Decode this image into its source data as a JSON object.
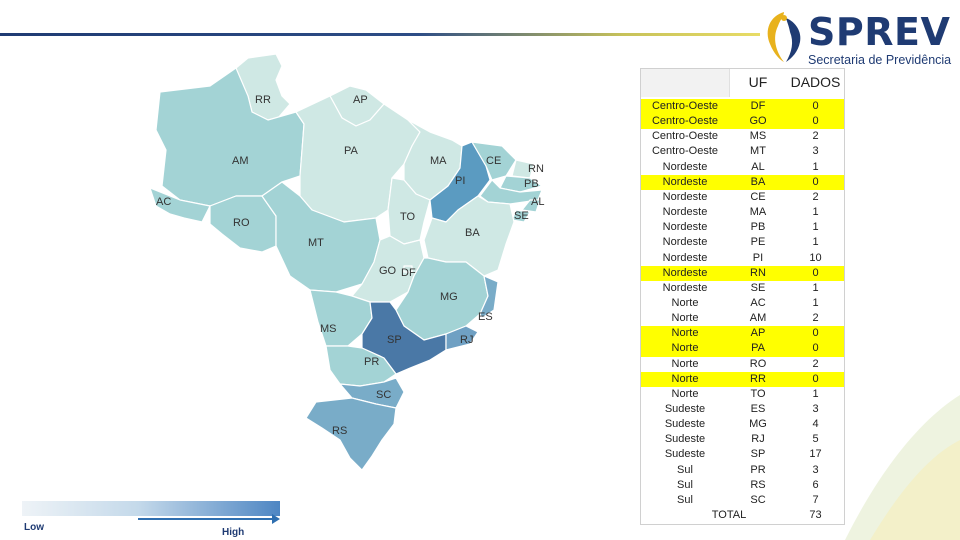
{
  "header": {
    "logo": {
      "title": "SPREV",
      "subtitle": "Secretaria de Previdência"
    }
  },
  "colors": {
    "brand": "#1f3b73",
    "highlight": "#ffff00",
    "accent_yellow": "#e8dc66"
  },
  "map": {
    "state_labels": [
      "RR",
      "AP",
      "AM",
      "PA",
      "MA",
      "CE",
      "RN",
      "PB",
      "PI",
      "AC",
      "RO",
      "TO",
      "AL",
      "SE",
      "MT",
      "BA",
      "GO",
      "DF",
      "MG",
      "ES",
      "MS",
      "SP",
      "RJ",
      "PR",
      "SC",
      "RS"
    ]
  },
  "legend": {
    "low": "Low",
    "high": "High"
  },
  "table": {
    "headers": {
      "uf": "UF",
      "dados": "DADOS"
    },
    "rows": [
      {
        "region": "Centro-Oeste",
        "uf": "DF",
        "value": "0",
        "highlight": true
      },
      {
        "region": "Centro-Oeste",
        "uf": "GO",
        "value": "0",
        "highlight": true
      },
      {
        "region": "Centro-Oeste",
        "uf": "MS",
        "value": "2",
        "highlight": false
      },
      {
        "region": "Centro-Oeste",
        "uf": "MT",
        "value": "3",
        "highlight": false
      },
      {
        "region": "Nordeste",
        "uf": "AL",
        "value": "1",
        "highlight": false
      },
      {
        "region": "Nordeste",
        "uf": "BA",
        "value": "0",
        "highlight": true
      },
      {
        "region": "Nordeste",
        "uf": "CE",
        "value": "2",
        "highlight": false
      },
      {
        "region": "Nordeste",
        "uf": "MA",
        "value": "1",
        "highlight": false
      },
      {
        "region": "Nordeste",
        "uf": "PB",
        "value": "1",
        "highlight": false
      },
      {
        "region": "Nordeste",
        "uf": "PE",
        "value": "1",
        "highlight": false
      },
      {
        "region": "Nordeste",
        "uf": "PI",
        "value": "10",
        "highlight": false
      },
      {
        "region": "Nordeste",
        "uf": "RN",
        "value": "0",
        "highlight": true
      },
      {
        "region": "Nordeste",
        "uf": "SE",
        "value": "1",
        "highlight": false
      },
      {
        "region": "Norte",
        "uf": "AC",
        "value": "1",
        "highlight": false
      },
      {
        "region": "Norte",
        "uf": "AM",
        "value": "2",
        "highlight": false
      },
      {
        "region": "Norte",
        "uf": "AP",
        "value": "0",
        "highlight": true
      },
      {
        "region": "Norte",
        "uf": "PA",
        "value": "0",
        "highlight": true
      },
      {
        "region": "Norte",
        "uf": "RO",
        "value": "2",
        "highlight": false
      },
      {
        "region": "Norte",
        "uf": "RR",
        "value": "0",
        "highlight": true
      },
      {
        "region": "Norte",
        "uf": "TO",
        "value": "1",
        "highlight": false
      },
      {
        "region": "Sudeste",
        "uf": "ES",
        "value": "3",
        "highlight": false
      },
      {
        "region": "Sudeste",
        "uf": "MG",
        "value": "4",
        "highlight": false
      },
      {
        "region": "Sudeste",
        "uf": "RJ",
        "value": "5",
        "highlight": false
      },
      {
        "region": "Sudeste",
        "uf": "SP",
        "value": "17",
        "highlight": false
      },
      {
        "region": "Sul",
        "uf": "PR",
        "value": "3",
        "highlight": false
      },
      {
        "region": "Sul",
        "uf": "RS",
        "value": "6",
        "highlight": false
      },
      {
        "region": "Sul",
        "uf": "SC",
        "value": "7",
        "highlight": false
      }
    ],
    "total": {
      "label": "TOTAL",
      "value": "73"
    }
  }
}
